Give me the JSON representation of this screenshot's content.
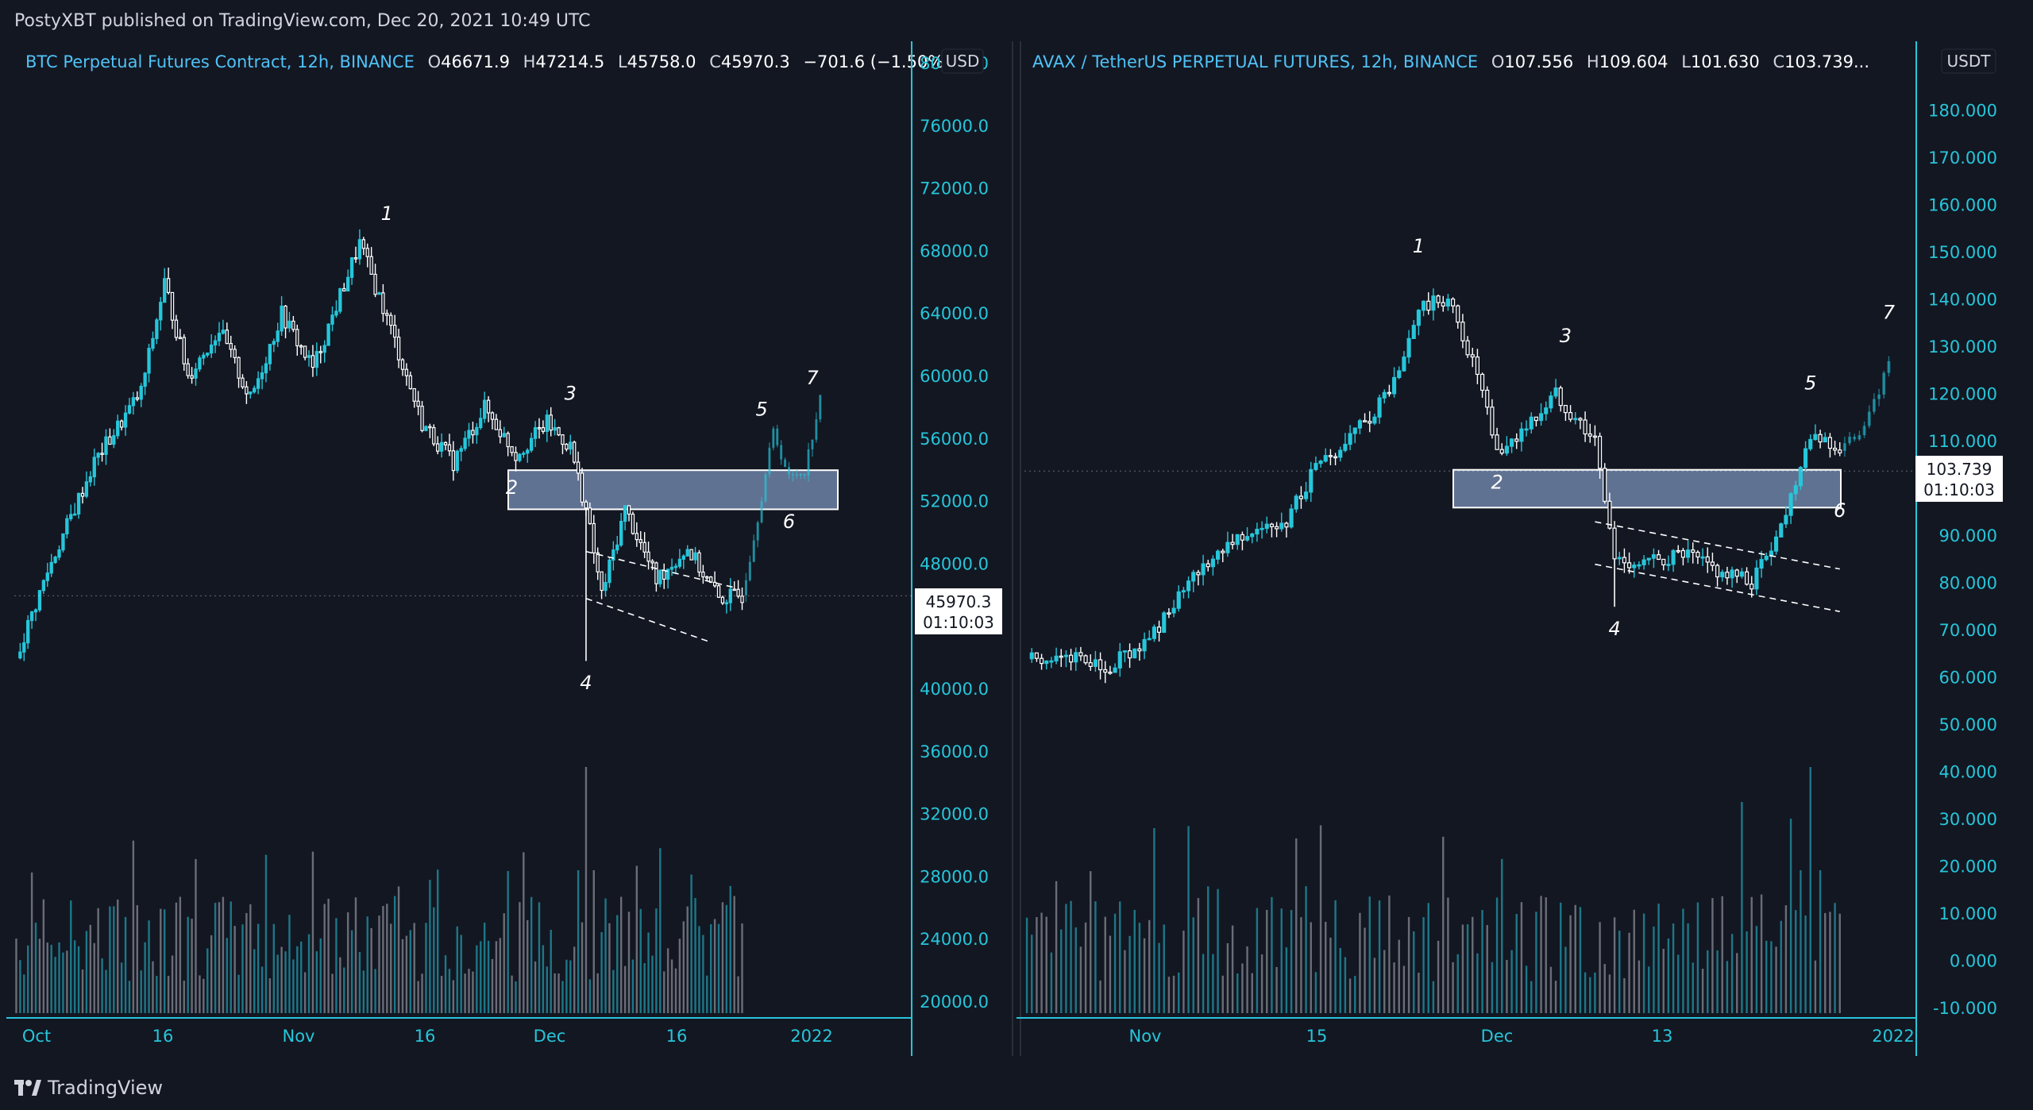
{
  "header": {
    "published_line": "PostyXBT published on TradingView.com, Dec 20, 2021 10:49 UTC"
  },
  "footer": {
    "brand": "TradingView"
  },
  "colors": {
    "bg": "#131722",
    "accent": "#26c6da",
    "up": "#26c6da",
    "down": "#ffffff",
    "zone": "#7b91b8",
    "axis": "#26c6da"
  },
  "left": {
    "title_symbol": "BTC Perpetual Futures Contract, 12h, BINANCE",
    "ohlc": {
      "o_label": "O",
      "o": "46671.9",
      "h_label": "H",
      "h": "47214.5",
      "l_label": "L",
      "l": "45758.0",
      "c_label": "C",
      "c": "45970.3",
      "chg": "−701.6 (−1.50%)"
    },
    "currency": "USD",
    "price_tag": "45970.3",
    "countdown": "01:10:03",
    "x_ticks": [
      "Oct",
      "16",
      "Nov",
      "16",
      "Dec",
      "16",
      "2022"
    ]
  },
  "right": {
    "title_symbol": "AVAX / TetherUS PERPETUAL FUTURES, 12h, BINANCE",
    "ohlc": {
      "o_label": "O",
      "o": "107.556",
      "h_label": "H",
      "h": "109.604",
      "l_label": "L",
      "l": "101.630",
      "c_label": "C",
      "c": "103.739..."
    },
    "currency": "USDT",
    "price_tag": "103.739",
    "countdown": "01:10:03",
    "x_ticks": [
      "Nov",
      "15",
      "Dec",
      "13",
      "2022"
    ]
  },
  "chart_data": [
    {
      "type": "candlestick",
      "title": "BTC Perpetual Futures Contract, 12h, BINANCE",
      "y_ticks": [
        "80000.0",
        "76000.0",
        "72000.0",
        "68000.0",
        "64000.0",
        "60000.0",
        "56000.0",
        "52000.0",
        "48000.0",
        "44000.0",
        "40000.0",
        "36000.0",
        "32000.0",
        "28000.0",
        "24000.0",
        "20000.0"
      ],
      "ylim": [
        20000,
        80000
      ],
      "x": [
        "Oct",
        "16",
        "Nov",
        "16",
        "Dec",
        "16",
        "2022"
      ],
      "close_path": [
        [
          0,
          42000
        ],
        [
          8,
          47500
        ],
        [
          20,
          54500
        ],
        [
          32,
          59000
        ],
        [
          38,
          66000
        ],
        [
          44,
          60000
        ],
        [
          52,
          63000
        ],
        [
          60,
          58500
        ],
        [
          68,
          64000
        ],
        [
          76,
          60500
        ],
        [
          88,
          68500
        ],
        [
          96,
          63000
        ],
        [
          104,
          57000
        ],
        [
          112,
          54500
        ],
        [
          120,
          58000
        ],
        [
          128,
          55000
        ],
        [
          136,
          57000
        ],
        [
          142,
          55500
        ],
        [
          146,
          51500
        ],
        [
          150,
          46000
        ],
        [
          156,
          51500
        ],
        [
          164,
          47000
        ],
        [
          172,
          49000
        ],
        [
          180,
          45800
        ],
        [
          186,
          46000
        ]
      ],
      "projection": [
        [
          186,
          46000
        ],
        [
          190,
          51000
        ],
        [
          194,
          56500
        ],
        [
          198,
          53500
        ],
        [
          202,
          54000
        ],
        [
          206,
          58500
        ]
      ],
      "zone": [
        51500,
        54000
      ],
      "wave_labels": [
        "1",
        "2",
        "3",
        "4",
        "5",
        "6",
        "7"
      ],
      "wave_points": [
        [
          95,
          70000
        ],
        [
          127,
          52500
        ],
        [
          142,
          58500
        ],
        [
          146,
          40000
        ],
        [
          191,
          57500
        ],
        [
          198,
          50300
        ],
        [
          204,
          59500
        ]
      ],
      "last": 45970.3,
      "volume_spike_index": 146
    },
    {
      "type": "candlestick",
      "title": "AVAX / TetherUS PERPETUAL FUTURES, 12h, BINANCE",
      "y_ticks": [
        "180.000",
        "170.000",
        "160.000",
        "150.000",
        "140.000",
        "130.000",
        "120.000",
        "110.000",
        "100.000",
        "90.000",
        "80.000",
        "70.000",
        "60.000",
        "50.000",
        "40.000",
        "30.000",
        "20.000",
        "10.000",
        "0.000",
        "-10.000"
      ],
      "ylim": [
        -10,
        190
      ],
      "x": [
        "Nov",
        "15",
        "Dec",
        "13",
        "2022"
      ],
      "close_path": [
        [
          0,
          64
        ],
        [
          10,
          64
        ],
        [
          16,
          62
        ],
        [
          24,
          67
        ],
        [
          32,
          78
        ],
        [
          40,
          88
        ],
        [
          46,
          92
        ],
        [
          52,
          91
        ],
        [
          58,
          103
        ],
        [
          64,
          108
        ],
        [
          70,
          115
        ],
        [
          76,
          124
        ],
        [
          80,
          138
        ],
        [
          86,
          140
        ],
        [
          92,
          124
        ],
        [
          96,
          107
        ],
        [
          104,
          115
        ],
        [
          108,
          120
        ],
        [
          112,
          115
        ],
        [
          116,
          110
        ],
        [
          120,
          85
        ],
        [
          126,
          84
        ],
        [
          134,
          86
        ],
        [
          142,
          82
        ],
        [
          148,
          80
        ],
        [
          154,
          92
        ],
        [
          160,
          112
        ],
        [
          166,
          108
        ]
      ],
      "projection": [
        [
          166,
          108
        ],
        [
          170,
          112
        ],
        [
          174,
          120
        ],
        [
          176,
          128
        ]
      ],
      "zone": [
        96,
        104
      ],
      "wave_labels": [
        "1",
        "2",
        "3",
        "4",
        "5",
        "6",
        "7"
      ],
      "wave_points": [
        [
          80,
          150
        ],
        [
          96,
          100
        ],
        [
          110,
          131
        ],
        [
          120,
          69
        ],
        [
          160,
          121
        ],
        [
          166,
          94
        ],
        [
          176,
          136
        ]
      ],
      "last": 103.739,
      "volume_spike_index": 160
    }
  ]
}
